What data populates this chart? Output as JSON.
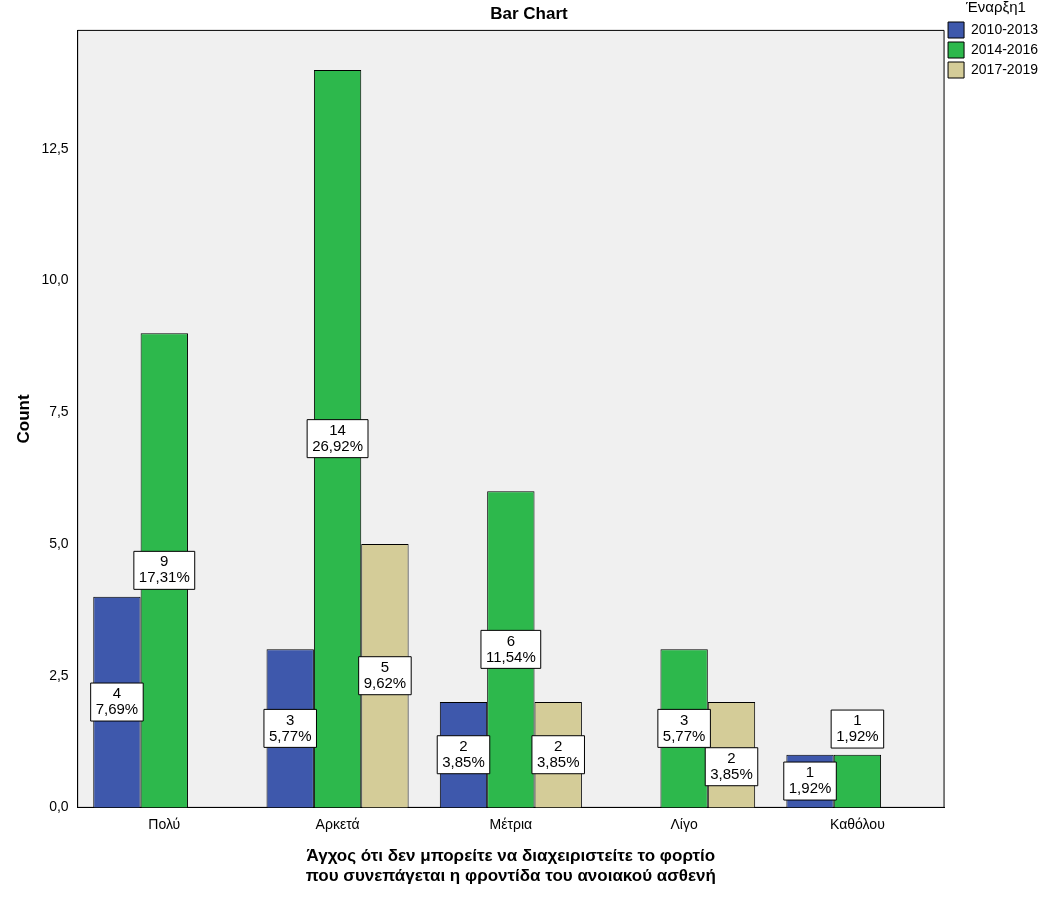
{
  "chart_data": {
    "type": "bar",
    "title": "Bar Chart",
    "xlabel": "Άγχος ότι δεν μπορείτε να διαχειριστείτε το φορτίο\nπου συνεπάγεται η φροντίδα του ανοιακού ασθενή",
    "ylabel": "Count",
    "legend_title": "Έναρξη1",
    "legend": "top right",
    "categories": [
      "Πολύ",
      "Αρκετά",
      "Μέτρια",
      "Λίγο",
      "Καθόλου"
    ],
    "series": [
      {
        "name": "2010-2013",
        "color": "#3e58ac",
        "values": [
          4,
          3,
          2,
          null,
          1
        ],
        "value_labels": [
          "4\n7,69%",
          "3\n5,77%",
          "2\n3,85%",
          null,
          "1\n1,92%"
        ]
      },
      {
        "name": "2014-2016",
        "color": "#2db84c",
        "values": [
          9,
          14,
          6,
          3,
          1
        ],
        "value_labels": [
          "9\n17,31%",
          "14\n26,92%",
          "6\n11,54%",
          "3\n5,77%",
          "1\n1,92%"
        ]
      },
      {
        "name": "2017-2019",
        "color": "#d4cc98",
        "values": [
          null,
          5,
          2,
          2,
          null
        ],
        "value_labels": [
          null,
          "5\n9,62%",
          "2\n3,85%",
          "2\n3,85%",
          null
        ]
      }
    ],
    "ylim": [
      0,
      14.75
    ],
    "yticks": [
      {
        "value": 0,
        "label": "0,0"
      },
      {
        "value": 2.5,
        "label": "2,5"
      },
      {
        "value": 5,
        "label": "5,0"
      },
      {
        "value": 7.5,
        "label": "7,5"
      },
      {
        "value": 10,
        "label": "10,0"
      },
      {
        "value": 12.5,
        "label": "12,5"
      }
    ],
    "grid": false
  }
}
